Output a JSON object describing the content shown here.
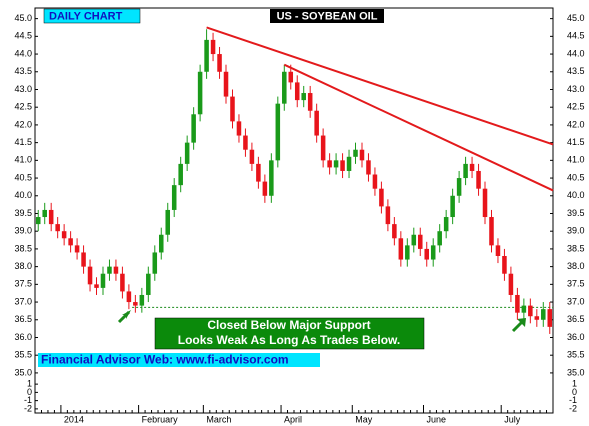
{
  "chart_data": {
    "type": "candlestick",
    "title": "US - SOYBEAN OIL",
    "subtitle": "DAILY CHART",
    "annotations": [
      "Closed Below Major Support",
      "Looks Weak As Long As Trades Below."
    ],
    "footer": "Financial Advisor Web: www.fi-advisor.com",
    "categories": [
      null,
      null,
      null,
      null,
      "2014",
      null,
      null,
      null,
      null,
      null,
      null,
      null,
      null,
      null,
      null,
      null,
      "February",
      null,
      null,
      null,
      null,
      null,
      null,
      null,
      null,
      null,
      "March",
      null,
      null,
      null,
      null,
      null,
      null,
      null,
      null,
      null,
      null,
      null,
      "April",
      null,
      null,
      null,
      null,
      null,
      null,
      null,
      null,
      null,
      null,
      "May",
      null,
      null,
      null,
      null,
      null,
      null,
      null,
      null,
      null,
      null,
      "June",
      null,
      null,
      null,
      null,
      null,
      null,
      null,
      null,
      null,
      null,
      null,
      "July",
      null,
      null,
      null,
      null,
      null,
      null,
      null
    ],
    "open": [
      39.2,
      39.4,
      39.6,
      39.2,
      39.0,
      38.8,
      38.6,
      38.4,
      38.0,
      37.5,
      37.4,
      37.8,
      38.0,
      37.8,
      37.3,
      37.0,
      36.9,
      37.2,
      37.8,
      38.4,
      38.9,
      39.6,
      40.3,
      40.9,
      41.5,
      42.3,
      43.5,
      44.4,
      44.0,
      43.5,
      42.8,
      42.1,
      41.7,
      41.3,
      40.9,
      40.4,
      40.0,
      41.0,
      42.6,
      43.5,
      43.2,
      42.7,
      42.9,
      42.4,
      41.7,
      41.0,
      40.8,
      41.0,
      40.7,
      41.1,
      41.3,
      41.0,
      40.6,
      40.2,
      39.7,
      39.2,
      38.8,
      38.2,
      38.6,
      38.9,
      38.5,
      38.2,
      38.6,
      39.0,
      39.4,
      40.0,
      40.5,
      40.9,
      40.7,
      40.2,
      39.4,
      38.6,
      38.3,
      37.8,
      37.2,
      36.7,
      36.9,
      36.6,
      36.5,
      36.8
    ],
    "high": [
      39.6,
      39.8,
      39.8,
      39.4,
      39.2,
      39.0,
      38.8,
      38.6,
      38.2,
      37.7,
      38.0,
      38.2,
      38.2,
      38.0,
      37.5,
      37.2,
      37.4,
      38.0,
      38.6,
      39.1,
      39.8,
      40.5,
      41.1,
      41.7,
      42.5,
      43.7,
      44.7,
      44.6,
      44.2,
      43.7,
      43.0,
      42.3,
      41.9,
      41.5,
      41.1,
      40.6,
      41.2,
      42.8,
      43.7,
      43.7,
      43.4,
      43.1,
      43.1,
      42.6,
      41.9,
      41.2,
      41.2,
      41.2,
      41.3,
      41.5,
      41.5,
      41.2,
      40.8,
      40.4,
      39.9,
      39.4,
      39.0,
      38.8,
      39.1,
      39.1,
      38.7,
      38.8,
      39.2,
      39.6,
      40.2,
      40.7,
      41.1,
      41.1,
      40.9,
      40.4,
      39.6,
      38.8,
      38.5,
      38.0,
      37.4,
      37.1,
      37.1,
      36.8,
      37.0,
      37.0
    ],
    "low": [
      39.0,
      39.2,
      39.0,
      38.8,
      38.6,
      38.4,
      38.2,
      37.8,
      37.3,
      37.2,
      37.2,
      37.6,
      37.6,
      37.1,
      36.8,
      36.7,
      36.7,
      37.0,
      37.6,
      38.2,
      38.7,
      39.4,
      40.1,
      40.7,
      41.3,
      42.1,
      43.3,
      43.8,
      43.3,
      42.6,
      41.9,
      41.5,
      41.1,
      40.7,
      40.2,
      39.8,
      39.8,
      40.8,
      42.4,
      43.0,
      42.5,
      42.5,
      42.2,
      41.5,
      40.8,
      40.6,
      40.6,
      40.5,
      40.5,
      40.9,
      40.8,
      40.4,
      40.0,
      39.5,
      39.0,
      38.6,
      38.0,
      38.0,
      38.4,
      38.3,
      38.0,
      38.0,
      38.4,
      38.8,
      39.2,
      39.8,
      40.3,
      40.5,
      40.0,
      39.2,
      38.4,
      38.1,
      37.6,
      37.0,
      36.5,
      36.5,
      36.4,
      36.3,
      36.3,
      36.1
    ],
    "close": [
      39.4,
      39.6,
      39.2,
      39.0,
      38.8,
      38.6,
      38.4,
      38.0,
      37.5,
      37.4,
      37.8,
      38.0,
      37.8,
      37.3,
      37.0,
      36.9,
      37.2,
      37.8,
      38.4,
      38.9,
      39.6,
      40.3,
      40.9,
      41.5,
      42.3,
      43.5,
      44.4,
      44.0,
      43.5,
      42.8,
      42.1,
      41.7,
      41.3,
      40.9,
      40.4,
      40.0,
      41.0,
      42.6,
      43.5,
      43.2,
      42.7,
      42.9,
      42.4,
      41.7,
      41.0,
      40.8,
      41.0,
      40.7,
      41.1,
      41.3,
      41.0,
      40.6,
      40.2,
      39.7,
      39.2,
      38.8,
      38.2,
      38.6,
      38.9,
      38.5,
      38.2,
      38.6,
      39.0,
      39.4,
      40.0,
      40.5,
      40.9,
      40.7,
      40.2,
      39.4,
      38.6,
      38.3,
      37.8,
      37.2,
      36.7,
      36.9,
      36.6,
      36.5,
      36.8,
      36.3
    ],
    "up_color": "#1a9a1a",
    "down_color": "#e8141b",
    "trendlines": [
      {
        "x": [
          26,
          80
        ],
        "y": [
          44.75,
          41.45
        ]
      },
      {
        "x": [
          38,
          80
        ],
        "y": [
          43.7,
          40.15
        ]
      }
    ],
    "trendline_color": "#e31a1c",
    "support": {
      "x": [
        15,
        80
      ],
      "y": 36.85,
      "color": "#1a8a1a"
    },
    "ylim": [
      34.8,
      45.3
    ],
    "yticks": [
      {
        "value": 45,
        "label": "45.0"
      },
      {
        "value": 44.5,
        "label": "44.5"
      },
      {
        "value": 44,
        "label": "44.0"
      },
      {
        "value": 43.5,
        "label": "43.5"
      },
      {
        "value": 43,
        "label": "43.0"
      },
      {
        "value": 42.5,
        "label": "42.5"
      },
      {
        "value": 42,
        "label": "42.0"
      },
      {
        "value": 41.5,
        "label": "41.5"
      },
      {
        "value": 41,
        "label": "41.0"
      },
      {
        "value": 40.5,
        "label": "40.5"
      },
      {
        "value": 40,
        "label": "40.0"
      },
      {
        "value": 39.5,
        "label": "39.5"
      },
      {
        "value": 39,
        "label": "39.0"
      },
      {
        "value": 38.5,
        "label": "38.5"
      },
      {
        "value": 38,
        "label": "38.0"
      },
      {
        "value": 37.5,
        "label": "37.5"
      },
      {
        "value": 37,
        "label": "37.0"
      },
      {
        "value": 36.5,
        "label": "36.5"
      },
      {
        "value": 36,
        "label": "36.0"
      },
      {
        "value": 35.5,
        "label": "35.5"
      },
      {
        "value": 35,
        "label": "35.0"
      }
    ],
    "y2lim": [
      -2.5,
      1.5
    ],
    "y2ticks": [
      1,
      0,
      -1,
      -2
    ]
  }
}
